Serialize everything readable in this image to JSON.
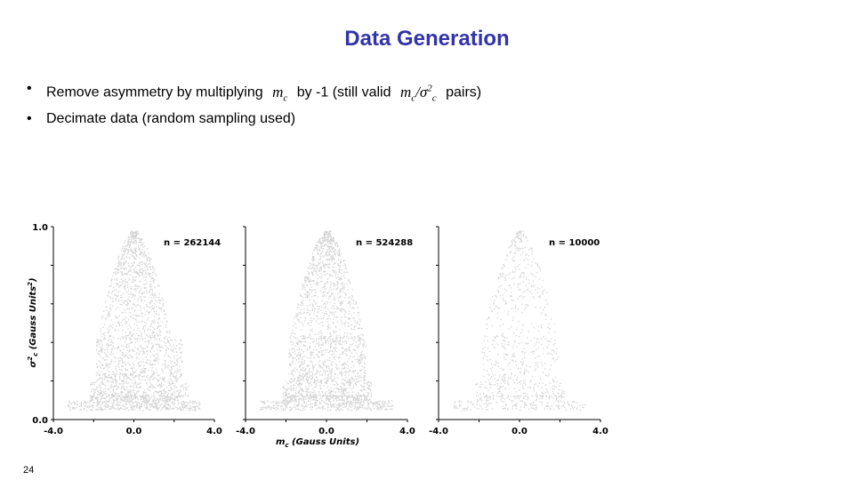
{
  "slide": {
    "title": "Data Generation",
    "title_color": "#3333aa",
    "bullets": [
      {
        "marker": "•",
        "text_a": "Remove asymmetry by multiplying",
        "math_a": "m",
        "math_a_sub": "c",
        "text_b": "by -1 (still valid",
        "math_b": "m",
        "math_b_sub": "c",
        "math_b_slash": "/σ",
        "math_b_sup": "2",
        "math_b_sub2": "c",
        "text_c": "pairs)"
      },
      {
        "marker": "•",
        "text_a": "Decimate data (random sampling used)"
      }
    ],
    "page_number": "24"
  },
  "chart_data": [
    {
      "type": "scatter",
      "annotation": "n = 262144",
      "n": 262144,
      "xlim": [
        -4.0,
        4.0
      ],
      "ylim": [
        0.0,
        1.0
      ],
      "x_ticks": [
        "-4.0",
        "0.0",
        "4.0"
      ],
      "y_ticks": [
        "0.0",
        "1.0"
      ],
      "ylabel": "σ²c (Gauss Units²)",
      "point_color": "#d3d3d3",
      "shape": "bell with shoulders at y≈0.4 and y≈0.2, plus a wide band at y≈0.1, x from about -3.2 to 3.0"
    },
    {
      "type": "scatter",
      "annotation": "n = 524288",
      "n": 524288,
      "xlim": [
        -4.0,
        4.0
      ],
      "ylim": [
        0.0,
        1.0
      ],
      "x_ticks": [
        "-4.0",
        "0.0",
        "4.0"
      ],
      "xlabel": "mc (Gauss Units)",
      "point_color": "#d3d3d3",
      "shape": "symmetric bell with shoulders at y≈0.4 and y≈0.2, plus a wide band at y≈0.1, x from about -3.5 to 3.5"
    },
    {
      "type": "scatter",
      "annotation": "n = 10000",
      "n": 10000,
      "xlim": [
        -4.0,
        4.0
      ],
      "ylim": [
        0.0,
        1.0
      ],
      "x_ticks": [
        "-4.0",
        "0.0",
        "4.0"
      ],
      "point_color": "#d3d3d3",
      "shape": "sparser symmetric bell with a dense band at y≈0.1 and y≈0.2"
    }
  ],
  "axis_labels": {
    "y_main": "σ",
    "y_sup": "2",
    "y_sub": "c",
    "y_rest": " (Gauss Units",
    "y_sup2": "2",
    "y_close": ")",
    "x_main": "m",
    "x_sub": "c",
    "x_rest": " (Gauss Units)"
  }
}
